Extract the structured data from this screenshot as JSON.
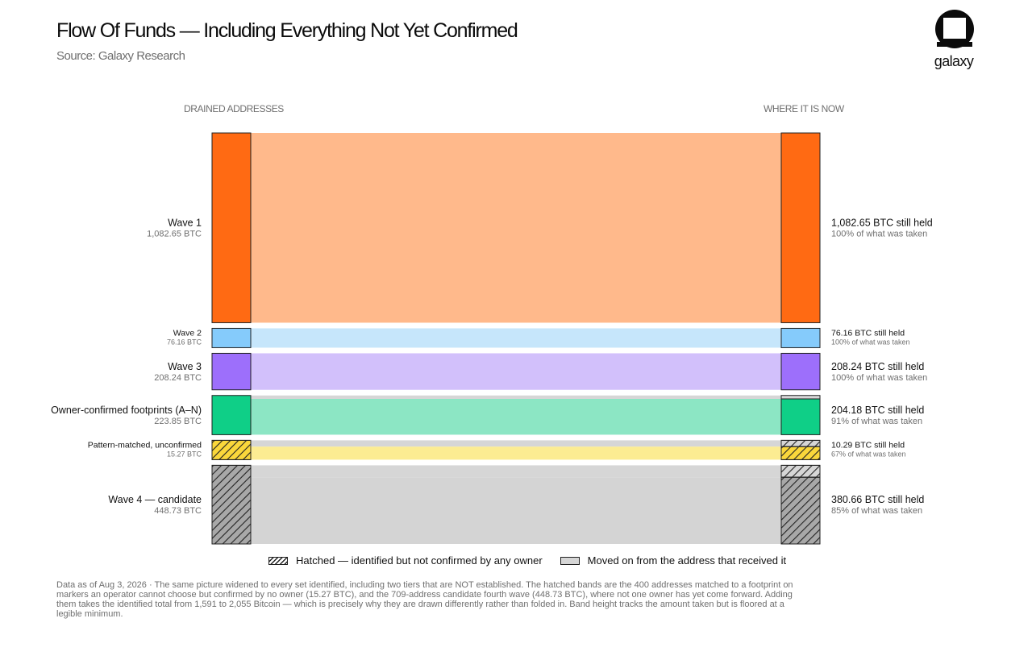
{
  "title": "Flow Of Funds — Including Everything Not Yet Confirmed",
  "subtitle": "Source: Galaxy Research",
  "brand": "galaxy",
  "left_header": "DRAINED ADDRESSES",
  "right_header": "WHERE IT IS NOW",
  "legend": {
    "hatched": "Hatched — identified but not confirmed by any owner",
    "moved": "Moved on from the address that received it"
  },
  "footnote": "Data as of Aug 3, 2026 · The same picture widened to every set identified, including two tiers that are NOT established. The hatched bands are the 400 addresses matched to a footprint on markers an operator cannot choose but confirmed by no owner (15.27 BTC), and the 709-address candidate fourth wave (448.73 BTC), where not one owner has yet come forward. Adding them takes the identified total from 1,591 to 2,055 Bitcoin — which is precisely why they are drawn differently rather than folded in. Band height tracks the amount taken but is floored at a legible minimum.",
  "chart_data": {
    "type": "sankey",
    "units": "BTC",
    "nodes": [
      {
        "name": "Wave 1",
        "taken": 1082.65,
        "taken_label": "1,082.65 BTC",
        "held": 1082.65,
        "held_label": "1,082.65 BTC still held",
        "pct_label": "100% of what was taken",
        "color": "#ff6a13",
        "band_color": "#ffb98b",
        "hatched": false
      },
      {
        "name": "Wave 2",
        "taken": 76.16,
        "taken_label": "76.16 BTC",
        "held": 76.16,
        "held_label": "76.16 BTC still held",
        "pct_label": "100% of what was taken",
        "color": "#85cbfb",
        "band_color": "#c6e6fb",
        "hatched": false
      },
      {
        "name": "Wave 3",
        "taken": 208.24,
        "taken_label": "208.24 BTC",
        "held": 208.24,
        "held_label": "208.24 BTC still held",
        "pct_label": "100% of what was taken",
        "color": "#9d6ffb",
        "band_color": "#d2c0fb",
        "hatched": false
      },
      {
        "name": "Owner-confirmed footprints (A–N)",
        "taken": 223.85,
        "taken_label": "223.85 BTC",
        "held": 204.18,
        "held_label": "204.18 BTC still held",
        "pct_label": "91% of what was taken",
        "color": "#0fcf87",
        "band_color": "#8ce6c4",
        "hatched": false
      },
      {
        "name": "Pattern-matched, unconfirmed",
        "taken": 15.27,
        "taken_label": "15.27 BTC",
        "held": 10.29,
        "held_label": "10.29 BTC still held",
        "pct_label": "67% of what was taken",
        "color": "#fad73b",
        "band_color": "#fcec92",
        "hatched": true
      },
      {
        "name": "Wave 4 — candidate",
        "taken": 448.73,
        "taken_label": "448.73 BTC",
        "held": 380.66,
        "held_label": "380.66 BTC still held",
        "pct_label": "85% of what was taken",
        "color": "#a8a8a8",
        "band_color": "#d4d4d4",
        "hatched": true
      }
    ],
    "moved_color": "#d6d6d6"
  }
}
